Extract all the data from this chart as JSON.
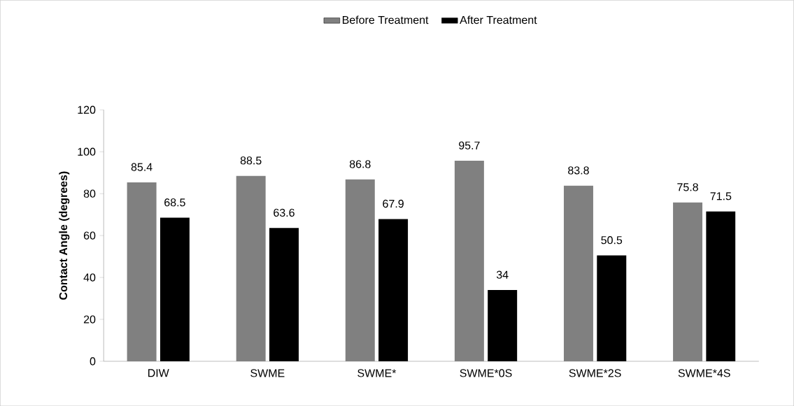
{
  "chart_data": {
    "type": "bar",
    "ylabel": "Contact Angle (degrees)",
    "categories": [
      "DIW",
      "SWME",
      "SWME*",
      "SWME*0S",
      "SWME*2S",
      "SWME*4S"
    ],
    "series": [
      {
        "name": "Before Treatment",
        "color": "#808080",
        "values": [
          85.4,
          88.5,
          86.8,
          95.7,
          83.8,
          75.8
        ]
      },
      {
        "name": "After Treatment",
        "color": "#000000",
        "values": [
          68.5,
          63.6,
          67.9,
          34,
          50.5,
          71.5
        ]
      }
    ],
    "ylim": [
      0,
      120
    ],
    "yticks": [
      0,
      20,
      40,
      60,
      80,
      100,
      120
    ],
    "grid": false,
    "legend": "top",
    "data_labels": true
  }
}
